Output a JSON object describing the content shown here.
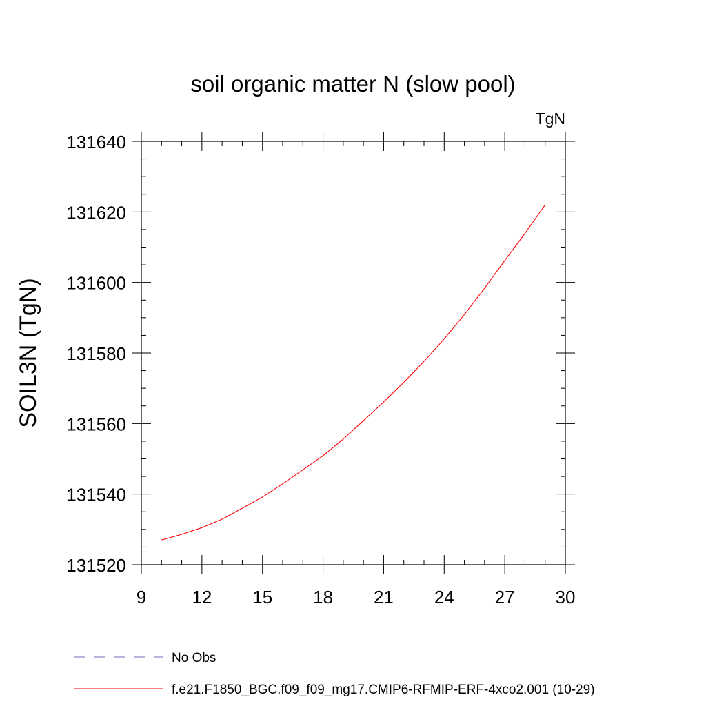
{
  "chart_data": {
    "type": "line",
    "title": "soil organic matter N (slow pool)",
    "units_label": "TgN",
    "xlabel": "",
    "ylabel": "SOIL3N  (TgN)",
    "xlim": [
      9,
      30
    ],
    "ylim": [
      131520,
      131640
    ],
    "xticks": [
      9,
      12,
      15,
      18,
      21,
      24,
      27,
      30
    ],
    "xminor_step": 1,
    "yticks": [
      131520,
      131540,
      131560,
      131580,
      131600,
      131620,
      131640
    ],
    "yminor_step": 5,
    "series": [
      {
        "name": "f.e21.F1850_BGC.f09_f09_mg17.CMIP6-RFMIP-ERF-4xco2.001 (10-29)",
        "color": "#ff0000",
        "dash": "solid",
        "x": [
          10,
          11,
          12,
          13,
          14,
          15,
          16,
          17,
          18,
          19,
          20,
          21,
          22,
          23,
          24,
          25,
          26,
          27,
          28,
          29
        ],
        "values": [
          131527.0,
          131528.6,
          131530.5,
          131532.9,
          131536.0,
          131539.2,
          131542.9,
          131546.9,
          131550.9,
          131555.6,
          131560.8,
          131566.1,
          131571.7,
          131577.6,
          131584.0,
          131590.9,
          131598.4,
          131606.2,
          131613.9,
          131622.0
        ]
      }
    ],
    "legend": [
      {
        "label": "No Obs",
        "color": "#6a6ab8",
        "dash": "dashed"
      },
      {
        "label": "f.e21.F1850_BGC.f09_f09_mg17.CMIP6-RFMIP-ERF-4xco2.001 (10-29)",
        "color": "#ff0000",
        "dash": "solid"
      }
    ]
  }
}
